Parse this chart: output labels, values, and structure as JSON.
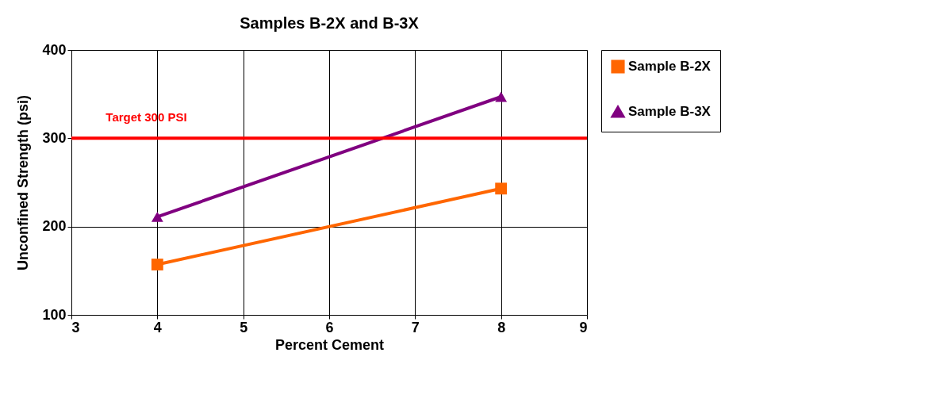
{
  "chart_data": {
    "type": "line",
    "title": "Samples B-2X and B-3X",
    "xlabel": "Percent Cement",
    "ylabel": "Unconfined Strength (psi)",
    "x": [
      4,
      8
    ],
    "series": [
      {
        "name": "Sample B-2X",
        "color": "#ff6600",
        "marker": "square",
        "values": [
          157,
          243
        ]
      },
      {
        "name": "Sample B-3X",
        "color": "#800080",
        "marker": "triangle",
        "values": [
          211,
          347
        ]
      }
    ],
    "xlim": [
      3,
      9
    ],
    "xticks": [
      3,
      4,
      5,
      6,
      7,
      8,
      9
    ],
    "ylim": [
      100,
      400
    ],
    "yticks": [
      100,
      200,
      300,
      400
    ],
    "ref_lines": [
      {
        "axis": "y",
        "value": 300,
        "label": "Target 300 PSI",
        "color": "#ff0000"
      }
    ],
    "grid": true,
    "legend": "right",
    "line_style": "solid"
  }
}
